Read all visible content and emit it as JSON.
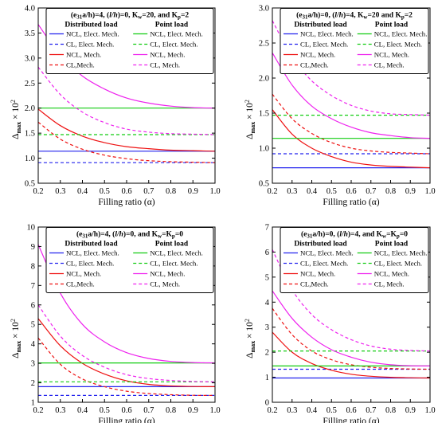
{
  "line_legend_types": [
    "solid",
    "dashed",
    "solid",
    "dashed"
  ],
  "colors": {
    "distributed": [
      "#2222ee",
      "#2222ee",
      "#ee1111",
      "#ee1111"
    ],
    "point": [
      "#11cc11",
      "#11cc11",
      "#ee22ee",
      "#ee22ee"
    ]
  },
  "chart_data": [
    {
      "type": "line",
      "title": "(e31a/h)=4, (l/h)=0, Kw=20, and Kp=2",
      "title_parts": {
        "lead": "(e",
        "sub1": "31",
        "mid": "a/h)=4, (",
        "it": "l/h",
        "tail": ")=0, K",
        "sub2": "w",
        "tail2": "=20, and K",
        "sub3": "p",
        "tail3": "=2"
      },
      "xlabel": "Filling ratio (α)",
      "ylabel": "Δmax × 10²",
      "xlim": [
        0.2,
        1.0
      ],
      "ylim": [
        0.5,
        4.0
      ],
      "xticks": [
        "0.2",
        "0.3",
        "0.4",
        "0.5",
        "0.6",
        "0.7",
        "0.8",
        "0.9",
        "1.0"
      ],
      "yticks": [
        "0.5",
        "1.0",
        "1.5",
        "2.0",
        "2.5",
        "3.0",
        "3.5",
        "4.0"
      ],
      "legend": {
        "col1_head": "Distributed load",
        "col2_head": "Point load",
        "col1": [
          "NCL, Elect. Mech.",
          "CL, Elect. Mech.",
          "NCL, Mech.",
          "CL,Mech."
        ],
        "col2": [
          "NCL, Elect. Mech.",
          "CL, Elect. Mech.",
          "NCL, Mech.",
          "CL, Mech."
        ]
      },
      "x": [
        0.2,
        0.3,
        0.4,
        0.5,
        0.6,
        0.7,
        0.8,
        0.9,
        1.0
      ],
      "series": [
        {
          "group": "distributed",
          "style": "solid",
          "color": "#2222ee",
          "values": [
            1.14,
            1.14,
            1.14,
            1.14,
            1.14,
            1.14,
            1.14,
            1.14,
            1.14
          ]
        },
        {
          "group": "distributed",
          "style": "dashed",
          "color": "#2222ee",
          "values": [
            0.91,
            0.91,
            0.91,
            0.91,
            0.91,
            0.91,
            0.91,
            0.91,
            0.91
          ]
        },
        {
          "group": "distributed",
          "style": "solid",
          "color": "#ee1111",
          "values": [
            1.98,
            1.65,
            1.44,
            1.31,
            1.23,
            1.19,
            1.16,
            1.15,
            1.14
          ]
        },
        {
          "group": "distributed",
          "style": "dashed",
          "color": "#ee1111",
          "values": [
            1.72,
            1.38,
            1.18,
            1.06,
            0.99,
            0.95,
            0.93,
            0.92,
            0.91
          ]
        },
        {
          "group": "point",
          "style": "solid",
          "color": "#11cc11",
          "values": [
            2.0,
            2.0,
            2.0,
            2.0,
            2.0,
            2.0,
            2.0,
            2.0,
            2.0
          ]
        },
        {
          "group": "point",
          "style": "dashed",
          "color": "#11cc11",
          "values": [
            1.47,
            1.47,
            1.47,
            1.47,
            1.47,
            1.47,
            1.47,
            1.47,
            1.47
          ]
        },
        {
          "group": "point",
          "style": "solid",
          "color": "#ee22ee",
          "values": [
            3.67,
            3.05,
            2.64,
            2.38,
            2.2,
            2.1,
            2.04,
            2.01,
            2.0
          ]
        },
        {
          "group": "point",
          "style": "dashed",
          "color": "#ee22ee",
          "values": [
            2.82,
            2.27,
            1.92,
            1.71,
            1.58,
            1.52,
            1.49,
            1.48,
            1.47
          ]
        }
      ]
    },
    {
      "type": "line",
      "title": "(e31a/h)=0, (l/h)=4, Kw=20 and Kp=2",
      "title_parts": {
        "lead": "(e",
        "sub1": "31",
        "mid": "a/h)=0, (",
        "it": "l/h",
        "tail": ")=4, K",
        "sub2": "w",
        "tail2": "=20 and K",
        "sub3": "p",
        "tail3": "=2"
      },
      "xlabel": "Filling ratio (α)",
      "ylabel": "Δmax × 10²",
      "xlim": [
        0.2,
        1.0
      ],
      "ylim": [
        0.5,
        3.0
      ],
      "xticks": [
        "0.2",
        "0.3",
        "0.4",
        "0.5",
        "0.6",
        "0.7",
        "0.8",
        "0.9",
        "1.0"
      ],
      "yticks": [
        "0.5",
        "1.0",
        "1.5",
        "2.0",
        "2.5",
        "3.0"
      ],
      "legend": {
        "col1_head": "Distributed load",
        "col2_head": "Point load",
        "col1": [
          "NCL, Elect. Mech.",
          "CL, Elect. Mech.",
          "NCL, Mech.",
          "CL,Mech."
        ],
        "col2": [
          "NCL, Elect. Mech.",
          "CL, Elect. Mech.",
          "NCL, Mech.",
          "CL, Mech."
        ]
      },
      "x": [
        0.2,
        0.3,
        0.4,
        0.5,
        0.6,
        0.7,
        0.8,
        0.9,
        1.0
      ],
      "series": [
        {
          "group": "distributed",
          "style": "solid",
          "color": "#2222ee",
          "values": [
            0.72,
            0.72,
            0.72,
            0.72,
            0.72,
            0.72,
            0.72,
            0.72,
            0.72
          ]
        },
        {
          "group": "distributed",
          "style": "dashed",
          "color": "#2222ee",
          "values": [
            0.92,
            0.92,
            0.92,
            0.92,
            0.92,
            0.92,
            0.92,
            0.92,
            0.92
          ]
        },
        {
          "group": "distributed",
          "style": "solid",
          "color": "#ee1111",
          "values": [
            1.55,
            1.2,
            1.0,
            0.88,
            0.8,
            0.76,
            0.74,
            0.73,
            0.72
          ]
        },
        {
          "group": "distributed",
          "style": "dashed",
          "color": "#ee1111",
          "values": [
            1.77,
            1.42,
            1.21,
            1.08,
            1.0,
            0.96,
            0.94,
            0.93,
            0.92
          ]
        },
        {
          "group": "point",
          "style": "solid",
          "color": "#11cc11",
          "values": [
            1.14,
            1.14,
            1.14,
            1.14,
            1.14,
            1.14,
            1.14,
            1.14,
            1.14
          ]
        },
        {
          "group": "point",
          "style": "dashed",
          "color": "#11cc11",
          "values": [
            1.47,
            1.47,
            1.47,
            1.47,
            1.47,
            1.47,
            1.47,
            1.47,
            1.47
          ]
        },
        {
          "group": "point",
          "style": "solid",
          "color": "#ee22ee",
          "values": [
            2.36,
            1.9,
            1.6,
            1.42,
            1.3,
            1.22,
            1.18,
            1.15,
            1.14
          ]
        },
        {
          "group": "point",
          "style": "dashed",
          "color": "#ee22ee",
          "values": [
            2.82,
            2.3,
            1.96,
            1.75,
            1.61,
            1.53,
            1.49,
            1.48,
            1.47
          ]
        }
      ]
    },
    {
      "type": "line",
      "title": "(e31a/h)=4, (l/h)=0, and Kw=Kp=0",
      "title_parts": {
        "lead": "(e",
        "sub1": "31",
        "mid": "a/h)=4, (",
        "it": "l/h",
        "tail": ")=0, and K",
        "sub2": "w",
        "tail2": "=K",
        "sub3": "p",
        "tail3": "=0"
      },
      "xlabel": "Filling ratio (α)",
      "ylabel": "Δmax × 10²",
      "xlim": [
        0.2,
        1.0
      ],
      "ylim": [
        1,
        10
      ],
      "xticks": [
        "0.2",
        "0.3",
        "0.4",
        "0.5",
        "0.6",
        "0.7",
        "0.8",
        "0.9",
        "1.0"
      ],
      "yticks": [
        "1",
        "2",
        "3",
        "4",
        "5",
        "6",
        "7",
        "8",
        "9",
        "10"
      ],
      "legend": {
        "col1_head": "Distributed load",
        "col2_head": "Point load",
        "col1": [
          "NCL, Elect. Mech.",
          "CL, Elect. Mech.",
          "NCL, Mech.",
          "CL,Mech."
        ],
        "col2": [
          "NCL, Elect. Mech.",
          "CL, Elect. Mech.",
          "NCL, Mech.",
          "CL, Mech."
        ]
      },
      "x": [
        0.2,
        0.3,
        0.4,
        0.5,
        0.6,
        0.7,
        0.8,
        0.9,
        1.0
      ],
      "series": [
        {
          "group": "distributed",
          "style": "solid",
          "color": "#2222ee",
          "values": [
            1.8,
            1.8,
            1.8,
            1.8,
            1.8,
            1.8,
            1.8,
            1.8,
            1.8
          ]
        },
        {
          "group": "distributed",
          "style": "dashed",
          "color": "#2222ee",
          "values": [
            1.35,
            1.35,
            1.35,
            1.35,
            1.35,
            1.35,
            1.35,
            1.35,
            1.35
          ]
        },
        {
          "group": "distributed",
          "style": "solid",
          "color": "#ee1111",
          "values": [
            5.3,
            3.9,
            3.0,
            2.45,
            2.1,
            1.92,
            1.84,
            1.81,
            1.8
          ]
        },
        {
          "group": "distributed",
          "style": "dashed",
          "color": "#ee1111",
          "values": [
            4.3,
            2.95,
            2.2,
            1.8,
            1.57,
            1.45,
            1.39,
            1.36,
            1.35
          ]
        },
        {
          "group": "point",
          "style": "solid",
          "color": "#11cc11",
          "values": [
            3.02,
            3.02,
            3.02,
            3.02,
            3.02,
            3.02,
            3.02,
            3.02,
            3.02
          ]
        },
        {
          "group": "point",
          "style": "dashed",
          "color": "#11cc11",
          "values": [
            2.05,
            2.05,
            2.05,
            2.05,
            2.05,
            2.05,
            2.05,
            2.05,
            2.05
          ]
        },
        {
          "group": "point",
          "style": "solid",
          "color": "#ee22ee",
          "values": [
            9.1,
            6.6,
            5.0,
            4.1,
            3.55,
            3.25,
            3.1,
            3.04,
            3.02
          ]
        },
        {
          "group": "point",
          "style": "dashed",
          "color": "#ee22ee",
          "values": [
            6.0,
            4.4,
            3.4,
            2.8,
            2.42,
            2.22,
            2.12,
            2.07,
            2.05
          ]
        }
      ]
    },
    {
      "type": "line",
      "title": "(e31a/h)=0, (l/h)=4, and Kw=Kp=0",
      "title_parts": {
        "lead": "(e",
        "sub1": "31",
        "mid": "a/h)=0, (",
        "it": "l/h",
        "tail": ")=4, and K",
        "sub2": "w",
        "tail2": "=K",
        "sub3": "p",
        "tail3": "=0"
      },
      "xlabel": "Filling ratio (α)",
      "ylabel": "Δmax × 10²",
      "xlim": [
        0.2,
        1.0
      ],
      "ylim": [
        0,
        7
      ],
      "xticks": [
        "0.2",
        "0.3",
        "0.4",
        "0.5",
        "0.6",
        "0.7",
        "0.8",
        "0.9",
        "1.0"
      ],
      "yticks": [
        "0",
        "1",
        "2",
        "3",
        "4",
        "5",
        "6",
        "7"
      ],
      "legend": {
        "col1_head": "Distributed load",
        "col2_head": "Point load",
        "col1": [
          "NCL, Elect. Mech.",
          "CL, Elect. Mech.",
          "NCL, Mech.",
          "CL,Mech."
        ],
        "col2": [
          "NCL, Elect. Mech.",
          "CL, Elect. Mech.",
          "NCL, Mech.",
          "CL, Mech."
        ]
      },
      "x": [
        0.2,
        0.3,
        0.4,
        0.5,
        0.6,
        0.7,
        0.8,
        0.9,
        1.0
      ],
      "series": [
        {
          "group": "distributed",
          "style": "solid",
          "color": "#2222ee",
          "values": [
            0.97,
            0.97,
            0.97,
            0.97,
            0.97,
            0.97,
            0.97,
            0.97,
            0.97
          ]
        },
        {
          "group": "distributed",
          "style": "dashed",
          "color": "#2222ee",
          "values": [
            1.32,
            1.32,
            1.32,
            1.32,
            1.32,
            1.32,
            1.32,
            1.32,
            1.32
          ]
        },
        {
          "group": "distributed",
          "style": "solid",
          "color": "#ee1111",
          "values": [
            2.8,
            2.0,
            1.55,
            1.28,
            1.12,
            1.04,
            1.0,
            0.98,
            0.97
          ]
        },
        {
          "group": "distributed",
          "style": "dashed",
          "color": "#ee1111",
          "values": [
            3.75,
            2.7,
            2.05,
            1.7,
            1.5,
            1.4,
            1.35,
            1.33,
            1.32
          ]
        },
        {
          "group": "point",
          "style": "solid",
          "color": "#11cc11",
          "values": [
            1.45,
            1.45,
            1.45,
            1.45,
            1.45,
            1.45,
            1.45,
            1.45,
            1.45
          ]
        },
        {
          "group": "point",
          "style": "dashed",
          "color": "#11cc11",
          "values": [
            2.05,
            2.05,
            2.05,
            2.05,
            2.05,
            2.05,
            2.05,
            2.05,
            2.05
          ]
        },
        {
          "group": "point",
          "style": "solid",
          "color": "#ee22ee",
          "values": [
            4.45,
            3.35,
            2.6,
            2.1,
            1.8,
            1.6,
            1.5,
            1.46,
            1.45
          ]
        },
        {
          "group": "point",
          "style": "dashed",
          "color": "#ee22ee",
          "values": [
            6.1,
            4.5,
            3.5,
            2.9,
            2.5,
            2.25,
            2.12,
            2.07,
            2.05
          ]
        }
      ]
    }
  ]
}
